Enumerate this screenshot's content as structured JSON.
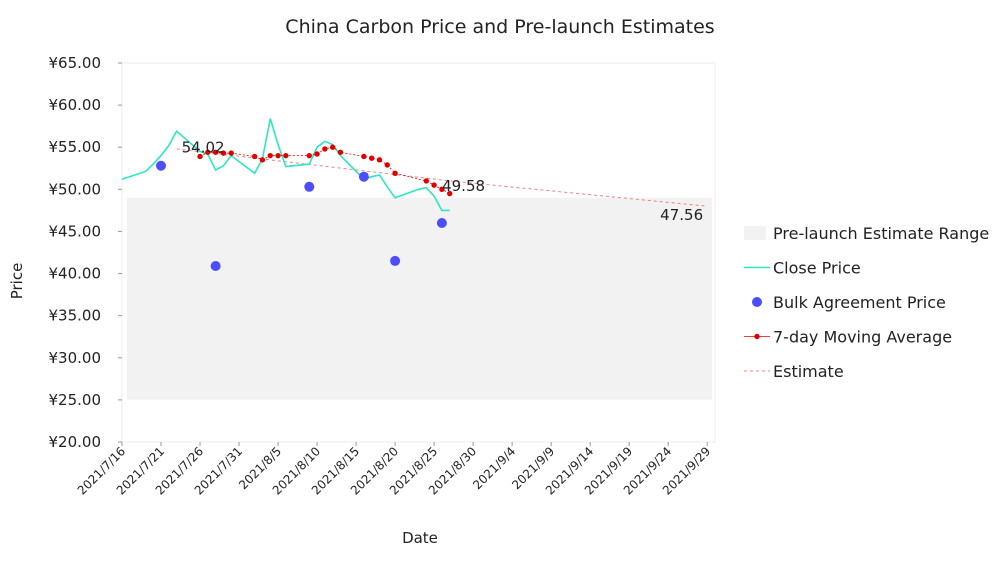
{
  "chart_data": {
    "type": "line",
    "title": "China Carbon Price and Pre-launch Estimates",
    "xlabel": "Date",
    "ylabel": "Price",
    "ylim": [
      20,
      65
    ],
    "yticks": [
      20,
      25,
      30,
      35,
      40,
      45,
      50,
      55,
      60,
      65
    ],
    "ytick_labels": [
      "¥20.00",
      "¥25.00",
      "¥30.00",
      "¥35.00",
      "¥40.00",
      "¥45.00",
      "¥50.00",
      "¥55.00",
      "¥60.00",
      "¥65.00"
    ],
    "xlim": [
      "2021-07-16",
      "2021-09-30"
    ],
    "xticks": [
      "2021-07-16",
      "2021-07-21",
      "2021-07-26",
      "2021-07-31",
      "2021-08-05",
      "2021-08-10",
      "2021-08-15",
      "2021-08-20",
      "2021-08-25",
      "2021-08-30",
      "2021-09-04",
      "2021-09-09",
      "2021-09-14",
      "2021-09-19",
      "2021-09-24",
      "2021-09-29"
    ],
    "xtick_labels": [
      "2021/7/16",
      "2021/7/21",
      "2021/7/26",
      "2021/7/31",
      "2021/8/5",
      "2021/8/10",
      "2021/8/15",
      "2021/8/20",
      "2021/8/25",
      "2021/8/30",
      "2021/9/4",
      "2021/9/9",
      "2021/9/14",
      "2021/9/19",
      "2021/9/24",
      "2021/9/29"
    ],
    "legend_position": "right",
    "estimate_range": {
      "name": "Pre-launch Estimate Range",
      "low": 25,
      "high": 49,
      "color": "#f2f2f2"
    },
    "series": [
      {
        "name": "Close Price",
        "kind": "line",
        "color": "#2ee6c0",
        "points": [
          [
            "2021-07-16",
            51.2
          ],
          [
            "2021-07-19",
            52.1
          ],
          [
            "2021-07-20",
            53.0
          ],
          [
            "2021-07-21",
            54.0
          ],
          [
            "2021-07-22",
            55.2
          ],
          [
            "2021-07-23",
            56.9
          ],
          [
            "2021-07-26",
            54.5
          ],
          [
            "2021-07-27",
            54.2
          ],
          [
            "2021-07-28",
            52.3
          ],
          [
            "2021-07-29",
            52.8
          ],
          [
            "2021-07-30",
            54.0
          ],
          [
            "2021-08-02",
            51.9
          ],
          [
            "2021-08-03",
            53.6
          ],
          [
            "2021-08-04",
            58.4
          ],
          [
            "2021-08-05",
            55.3
          ],
          [
            "2021-08-06",
            52.7
          ],
          [
            "2021-08-09",
            53.0
          ],
          [
            "2021-08-10",
            55.0
          ],
          [
            "2021-08-11",
            55.7
          ],
          [
            "2021-08-12",
            55.3
          ],
          [
            "2021-08-13",
            54.0
          ],
          [
            "2021-08-16",
            51.2
          ],
          [
            "2021-08-17",
            51.5
          ],
          [
            "2021-08-18",
            51.7
          ],
          [
            "2021-08-19",
            50.3
          ],
          [
            "2021-08-20",
            49.0
          ],
          [
            "2021-08-23",
            50.0
          ],
          [
            "2021-08-24",
            50.2
          ],
          [
            "2021-08-25",
            49.2
          ],
          [
            "2021-08-26",
            47.5
          ],
          [
            "2021-08-27",
            47.5
          ]
        ]
      },
      {
        "name": "Bulk Agreement Price",
        "kind": "scatter",
        "color": "#4d4dff",
        "points": [
          [
            "2021-07-21",
            52.8
          ],
          [
            "2021-07-28",
            40.9
          ],
          [
            "2021-08-09",
            50.3
          ],
          [
            "2021-08-16",
            51.5
          ],
          [
            "2021-08-20",
            41.5
          ],
          [
            "2021-08-26",
            46.0
          ]
        ]
      },
      {
        "name": "7-day Moving Average",
        "kind": "line-marker",
        "color": "#e00000",
        "points": [
          [
            "2021-07-26",
            53.9
          ],
          [
            "2021-07-27",
            54.4
          ],
          [
            "2021-07-28",
            54.4
          ],
          [
            "2021-07-29",
            54.3
          ],
          [
            "2021-07-30",
            54.3
          ],
          [
            "2021-08-02",
            53.9
          ],
          [
            "2021-08-03",
            53.5
          ],
          [
            "2021-08-04",
            54.0
          ],
          [
            "2021-08-05",
            54.0
          ],
          [
            "2021-08-06",
            54.0
          ],
          [
            "2021-08-09",
            54.0
          ],
          [
            "2021-08-10",
            54.2
          ],
          [
            "2021-08-11",
            54.8
          ],
          [
            "2021-08-12",
            55.0
          ],
          [
            "2021-08-13",
            54.4
          ],
          [
            "2021-08-16",
            53.9
          ],
          [
            "2021-08-17",
            53.7
          ],
          [
            "2021-08-18",
            53.5
          ],
          [
            "2021-08-19",
            52.9
          ],
          [
            "2021-08-20",
            51.9
          ],
          [
            "2021-08-24",
            51.0
          ],
          [
            "2021-08-25",
            50.5
          ],
          [
            "2021-08-26",
            50.0
          ],
          [
            "2021-08-27",
            49.5
          ]
        ]
      },
      {
        "name": "Estimate",
        "kind": "dashed",
        "color": "#f08080",
        "points": [
          [
            "2021-07-23",
            54.8
          ],
          [
            "2021-08-27",
            51.0
          ],
          [
            "2021-09-29",
            48.0
          ]
        ]
      }
    ],
    "annotations": [
      {
        "text": "54.02",
        "x": "2021-07-23",
        "y": 54.02
      },
      {
        "text": "49.58",
        "x": "2021-08-25",
        "y": 49.58
      },
      {
        "text": "47.56",
        "x": "2021-09-24",
        "y": 47.56
      }
    ]
  }
}
